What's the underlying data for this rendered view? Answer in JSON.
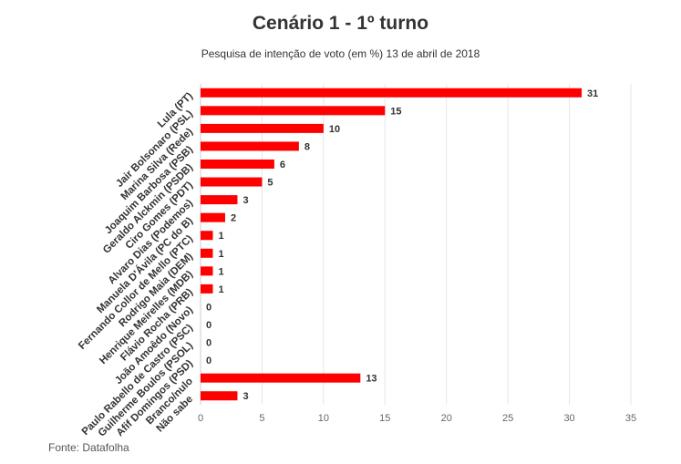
{
  "chart_data": {
    "type": "bar",
    "orientation": "horizontal",
    "title": "Cenário 1 - 1º turno",
    "subtitle": "Pesquisa de intenção de voto (em %) 13 de abril de 2018",
    "source": "Fonte: Datafolha",
    "categories": [
      "Lula (PT)",
      "Jair Bolsonaro (PSL)",
      "Marina Silva (Rede)",
      "Joaquim Barbosa (PSB)",
      "Geraldo Alckmin (PSDB)",
      "Ciro Gomes (PDT)",
      "Alvaro Dias (Podemos)",
      "Manuela D'Ávila (PC do B)",
      "Fernando Collor de Mello (PTC)",
      "Rodrigo Maia (DEM)",
      "Henrique Meirelles (MDB)",
      "Flávio Rocha (PRB)",
      "João Amoêdo (Novo)",
      "Paulo Rabello de Castro (PSC)",
      "Guilherme Boulos (PSOL)",
      "Afif Domingos (PSD)",
      "Branco/nulo",
      "Não sabe"
    ],
    "values": [
      31,
      15,
      10,
      8,
      6,
      5,
      3,
      2,
      1,
      1,
      1,
      1,
      0,
      0,
      0,
      0,
      13,
      3
    ],
    "xticks": [
      0,
      5,
      10,
      15,
      20,
      25,
      30,
      35
    ],
    "xlim": [
      0,
      35
    ],
    "xlabel": "",
    "ylabel": "",
    "grid": "vertical",
    "legend": "none",
    "bar_color": "#ff0000"
  }
}
